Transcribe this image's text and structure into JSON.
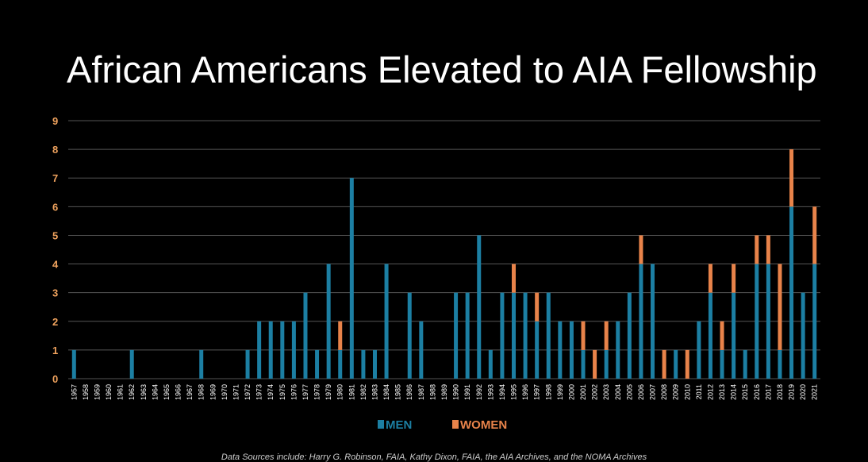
{
  "title": "African Americans Elevated to AIA Fellowship",
  "source_note": "Data Sources include: Harry G. Robinson, FAIA, Kathy Dixon, FAIA, the AIA Archives, and the NOMA Archives",
  "colors": {
    "men": "#1c7fa3",
    "women": "#e8834a",
    "ytick": "#f0a35e",
    "grid": "#555555",
    "background": "#000000"
  },
  "chart_data": {
    "type": "bar",
    "stacked": true,
    "title": "African Americans Elevated to AIA Fellowship",
    "xlabel": "",
    "ylabel": "",
    "ylim": [
      0,
      9
    ],
    "yticks": [
      "0",
      "1",
      "2",
      "3",
      "4",
      "5",
      "6",
      "7",
      "8",
      "9"
    ],
    "grid": true,
    "legend_position": "bottom",
    "categories": [
      "1957",
      "1958",
      "1959",
      "1960",
      "1961",
      "1962",
      "1963",
      "1964",
      "1965",
      "1966",
      "1967",
      "1968",
      "1969",
      "1970",
      "1971",
      "1972",
      "1973",
      "1974",
      "1975",
      "1976",
      "1977",
      "1978",
      "1979",
      "1980",
      "1981",
      "1982",
      "1983",
      "1984",
      "1985",
      "1986",
      "1987",
      "1988",
      "1989",
      "1990",
      "1991",
      "1992",
      "1993",
      "1994",
      "1995",
      "1996",
      "1997",
      "1998",
      "1999",
      "2000",
      "2001",
      "2002",
      "2003",
      "2004",
      "2005",
      "2006",
      "2007",
      "2008",
      "2009",
      "2010",
      "2011",
      "2012",
      "2013",
      "2014",
      "2015",
      "2016",
      "2017",
      "2018",
      "2019",
      "2020",
      "2021"
    ],
    "series": [
      {
        "name": "MEN",
        "values": [
          1,
          0,
          0,
          0,
          0,
          1,
          0,
          0,
          0,
          0,
          0,
          1,
          0,
          0,
          0,
          1,
          2,
          2,
          2,
          2,
          3,
          1,
          4,
          1,
          7,
          1,
          1,
          4,
          0,
          3,
          2,
          0,
          0,
          3,
          3,
          5,
          1,
          3,
          3,
          3,
          2,
          3,
          2,
          2,
          1,
          0,
          1,
          2,
          3,
          4,
          4,
          0,
          1,
          0,
          2,
          3,
          1,
          3,
          1,
          4,
          4,
          1,
          6,
          3,
          4
        ]
      },
      {
        "name": "WOMEN",
        "values": [
          0,
          0,
          0,
          0,
          0,
          0,
          0,
          0,
          0,
          0,
          0,
          0,
          0,
          0,
          0,
          0,
          0,
          0,
          0,
          0,
          0,
          0,
          0,
          1,
          0,
          0,
          0,
          0,
          0,
          0,
          0,
          0,
          0,
          0,
          0,
          0,
          0,
          0,
          1,
          0,
          1,
          0,
          0,
          0,
          1,
          1,
          1,
          0,
          0,
          1,
          0,
          1,
          0,
          1,
          0,
          1,
          1,
          1,
          0,
          1,
          1,
          3,
          2,
          0,
          2
        ]
      }
    ]
  }
}
